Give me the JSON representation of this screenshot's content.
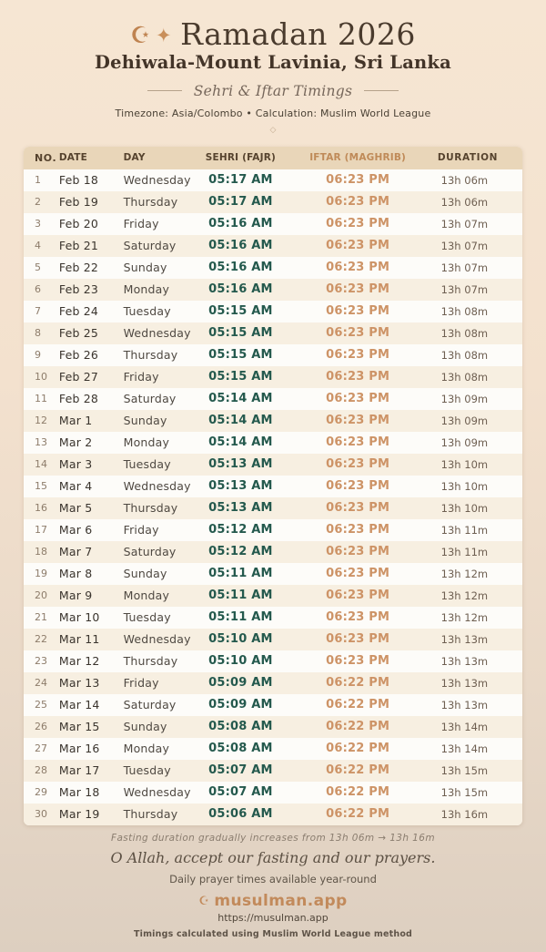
{
  "header": {
    "title": "Ramadan 2026",
    "location": "Dehiwala-Mount Lavinia, Sri Lanka",
    "subtitle": "Sehri & Iftar Timings",
    "meta": "Timezone: Asia/Colombo • Calculation: Muslim World League"
  },
  "icons": {
    "crescent": "☪",
    "sparkle": "✦",
    "diamond": "◇",
    "brand_crescent": "☪"
  },
  "table": {
    "headers": {
      "no": "NO.",
      "date": "DATE",
      "day": "DAY",
      "sehri": "SEHRI (FAJR)",
      "iftar": "IFTAR (MAGHRIB)",
      "duration": "DURATION"
    },
    "rows": [
      {
        "no": "1",
        "date": "Feb 18",
        "day": "Wednesday",
        "sehri": "05:17 AM",
        "iftar": "06:23 PM",
        "duration": "13h 06m"
      },
      {
        "no": "2",
        "date": "Feb 19",
        "day": "Thursday",
        "sehri": "05:17 AM",
        "iftar": "06:23 PM",
        "duration": "13h 06m"
      },
      {
        "no": "3",
        "date": "Feb 20",
        "day": "Friday",
        "sehri": "05:16 AM",
        "iftar": "06:23 PM",
        "duration": "13h 07m"
      },
      {
        "no": "4",
        "date": "Feb 21",
        "day": "Saturday",
        "sehri": "05:16 AM",
        "iftar": "06:23 PM",
        "duration": "13h 07m"
      },
      {
        "no": "5",
        "date": "Feb 22",
        "day": "Sunday",
        "sehri": "05:16 AM",
        "iftar": "06:23 PM",
        "duration": "13h 07m"
      },
      {
        "no": "6",
        "date": "Feb 23",
        "day": "Monday",
        "sehri": "05:16 AM",
        "iftar": "06:23 PM",
        "duration": "13h 07m"
      },
      {
        "no": "7",
        "date": "Feb 24",
        "day": "Tuesday",
        "sehri": "05:15 AM",
        "iftar": "06:23 PM",
        "duration": "13h 08m"
      },
      {
        "no": "8",
        "date": "Feb 25",
        "day": "Wednesday",
        "sehri": "05:15 AM",
        "iftar": "06:23 PM",
        "duration": "13h 08m"
      },
      {
        "no": "9",
        "date": "Feb 26",
        "day": "Thursday",
        "sehri": "05:15 AM",
        "iftar": "06:23 PM",
        "duration": "13h 08m"
      },
      {
        "no": "10",
        "date": "Feb 27",
        "day": "Friday",
        "sehri": "05:15 AM",
        "iftar": "06:23 PM",
        "duration": "13h 08m"
      },
      {
        "no": "11",
        "date": "Feb 28",
        "day": "Saturday",
        "sehri": "05:14 AM",
        "iftar": "06:23 PM",
        "duration": "13h 09m"
      },
      {
        "no": "12",
        "date": "Mar 1",
        "day": "Sunday",
        "sehri": "05:14 AM",
        "iftar": "06:23 PM",
        "duration": "13h 09m"
      },
      {
        "no": "13",
        "date": "Mar 2",
        "day": "Monday",
        "sehri": "05:14 AM",
        "iftar": "06:23 PM",
        "duration": "13h 09m"
      },
      {
        "no": "14",
        "date": "Mar 3",
        "day": "Tuesday",
        "sehri": "05:13 AM",
        "iftar": "06:23 PM",
        "duration": "13h 10m"
      },
      {
        "no": "15",
        "date": "Mar 4",
        "day": "Wednesday",
        "sehri": "05:13 AM",
        "iftar": "06:23 PM",
        "duration": "13h 10m"
      },
      {
        "no": "16",
        "date": "Mar 5",
        "day": "Thursday",
        "sehri": "05:13 AM",
        "iftar": "06:23 PM",
        "duration": "13h 10m"
      },
      {
        "no": "17",
        "date": "Mar 6",
        "day": "Friday",
        "sehri": "05:12 AM",
        "iftar": "06:23 PM",
        "duration": "13h 11m"
      },
      {
        "no": "18",
        "date": "Mar 7",
        "day": "Saturday",
        "sehri": "05:12 AM",
        "iftar": "06:23 PM",
        "duration": "13h 11m"
      },
      {
        "no": "19",
        "date": "Mar 8",
        "day": "Sunday",
        "sehri": "05:11 AM",
        "iftar": "06:23 PM",
        "duration": "13h 12m"
      },
      {
        "no": "20",
        "date": "Mar 9",
        "day": "Monday",
        "sehri": "05:11 AM",
        "iftar": "06:23 PM",
        "duration": "13h 12m"
      },
      {
        "no": "21",
        "date": "Mar 10",
        "day": "Tuesday",
        "sehri": "05:11 AM",
        "iftar": "06:23 PM",
        "duration": "13h 12m"
      },
      {
        "no": "22",
        "date": "Mar 11",
        "day": "Wednesday",
        "sehri": "05:10 AM",
        "iftar": "06:23 PM",
        "duration": "13h 13m"
      },
      {
        "no": "23",
        "date": "Mar 12",
        "day": "Thursday",
        "sehri": "05:10 AM",
        "iftar": "06:23 PM",
        "duration": "13h 13m"
      },
      {
        "no": "24",
        "date": "Mar 13",
        "day": "Friday",
        "sehri": "05:09 AM",
        "iftar": "06:22 PM",
        "duration": "13h 13m"
      },
      {
        "no": "25",
        "date": "Mar 14",
        "day": "Saturday",
        "sehri": "05:09 AM",
        "iftar": "06:22 PM",
        "duration": "13h 13m"
      },
      {
        "no": "26",
        "date": "Mar 15",
        "day": "Sunday",
        "sehri": "05:08 AM",
        "iftar": "06:22 PM",
        "duration": "13h 14m"
      },
      {
        "no": "27",
        "date": "Mar 16",
        "day": "Monday",
        "sehri": "05:08 AM",
        "iftar": "06:22 PM",
        "duration": "13h 14m"
      },
      {
        "no": "28",
        "date": "Mar 17",
        "day": "Tuesday",
        "sehri": "05:07 AM",
        "iftar": "06:22 PM",
        "duration": "13h 15m"
      },
      {
        "no": "29",
        "date": "Mar 18",
        "day": "Wednesday",
        "sehri": "05:07 AM",
        "iftar": "06:22 PM",
        "duration": "13h 15m"
      },
      {
        "no": "30",
        "date": "Mar 19",
        "day": "Thursday",
        "sehri": "05:06 AM",
        "iftar": "06:22 PM",
        "duration": "13h 16m"
      }
    ]
  },
  "footer": {
    "note": "Fasting duration gradually increases from 13h 06m → 13h 16m",
    "dua": "O Allah, accept our fasting and our prayers.",
    "availability": "Daily prayer times available year-round",
    "brand": "musulman.app",
    "url": "https://musulman.app",
    "method": "Timings calculated using Muslim World League method"
  },
  "colors": {
    "sehri_time": "#24594d",
    "iftar_time": "#cd9366",
    "brand": "#c28a5b",
    "table_header_bg": "#e9d6b9",
    "row_alt_bg": "#f7efe1",
    "page_bg_top": "#f6e6d3",
    "page_bg_bottom": "#ddcfc0"
  }
}
